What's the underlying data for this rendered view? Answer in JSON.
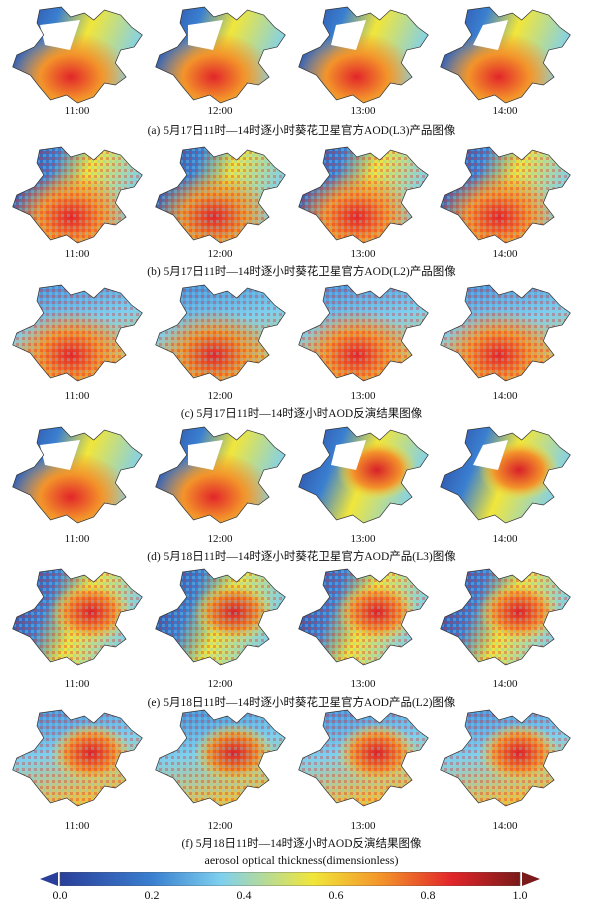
{
  "rows": [
    {
      "caption": "(a) 5月17日11时—14时逐小时葵花卫星官方AOD(L3)产品图像",
      "times": [
        "11:00",
        "12:00",
        "13:00",
        "14:00"
      ],
      "style": "l3a"
    },
    {
      "caption": "(b) 5月17日11时—14时逐小时葵花卫星官方AOD(L2)产品图像",
      "times": [
        "11:00",
        "12:00",
        "13:00",
        "14:00"
      ],
      "style": "l2"
    },
    {
      "caption": "(c) 5月17日11时—14时逐小时AOD反演结果图像",
      "times": [
        "11:00",
        "12:00",
        "13:00",
        "14:00"
      ],
      "style": "ret"
    },
    {
      "caption": "(d) 5月18日11时—14时逐小时葵花卫星官方AOD产品(L3)图像",
      "times": [
        "11:00",
        "12:00",
        "13:00",
        "14:00"
      ],
      "style": "l3d"
    },
    {
      "caption": "(e) 5月18日11时—14时逐小时葵花卫星官方AOD产品(L2)图像",
      "times": [
        "11:00",
        "12:00",
        "13:00",
        "14:00"
      ],
      "style": "l2"
    },
    {
      "caption": "(f) 5月18日11时—14时逐小时AOD反演结果图像",
      "times": [
        "11:00",
        "12:00",
        "13:00",
        "14:00"
      ],
      "style": "ret2"
    }
  ],
  "colorbar": {
    "title": "aerosol optical thickness(dimensionless)",
    "ticks": [
      "0.0",
      "0.2",
      "0.4",
      "0.6",
      "0.8",
      "1.0"
    ],
    "range": [
      0,
      1
    ],
    "colors": [
      "#2a3f9a",
      "#3a7fd0",
      "#7fd0ee",
      "#f1e63a",
      "#f3932a",
      "#e2262a",
      "#7a1a1a"
    ]
  }
}
